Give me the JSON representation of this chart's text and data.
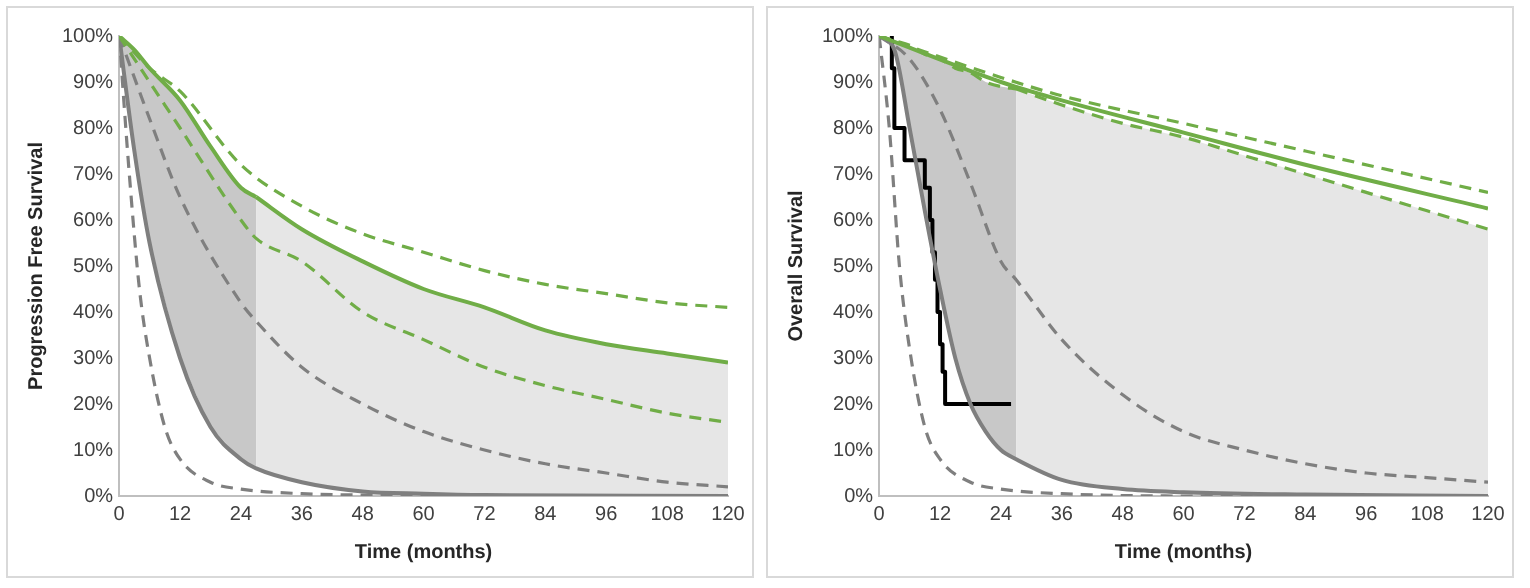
{
  "chart_data": [
    {
      "type": "line",
      "xlabel": "Time (months)",
      "ylabel": "Progression Free Survival",
      "xlim": [
        0,
        120
      ],
      "xticks": [
        0,
        12,
        24,
        36,
        48,
        60,
        72,
        84,
        96,
        108,
        120
      ],
      "ylim": [
        0,
        100
      ],
      "yticks": [
        {
          "value": 0,
          "label": "0%"
        },
        {
          "value": 10,
          "label": "10%"
        },
        {
          "value": 20,
          "label": "20%"
        },
        {
          "value": 30,
          "label": "30%"
        },
        {
          "value": 40,
          "label": "40%"
        },
        {
          "value": 50,
          "label": "50%"
        },
        {
          "value": 60,
          "label": "60%"
        },
        {
          "value": 70,
          "label": "70%"
        },
        {
          "value": 80,
          "label": "80%"
        },
        {
          "value": 90,
          "label": "90%"
        },
        {
          "value": 100,
          "label": "100%"
        }
      ],
      "grid": false,
      "legend": false,
      "marker": "none",
      "series": [
        {
          "color": "#70ad47",
          "line_style": "solid",
          "x": [
            0,
            3,
            6,
            12,
            18,
            24,
            27
          ],
          "values": [
            100,
            97,
            93,
            86,
            76,
            67,
            65
          ],
          "lower": [
            100,
            75,
            55,
            30,
            15,
            8,
            6
          ],
          "upper": [
            100,
            97,
            93,
            86,
            76,
            67,
            65
          ]
        },
        {
          "color": "#70ad47",
          "line_style": "solid",
          "x": [
            27,
            36,
            48,
            60,
            72,
            84,
            96,
            108,
            120
          ],
          "values": [
            65,
            58,
            51,
            45,
            41,
            36,
            33,
            31,
            29
          ],
          "lower": [
            6,
            3,
            1,
            0.5,
            0.2,
            0.1,
            0,
            0,
            0
          ],
          "upper": [
            65,
            58,
            51,
            45,
            41,
            36,
            33,
            31,
            29
          ]
        },
        {
          "color": "#70ad47",
          "line_style": "dashed",
          "x": [
            0,
            6,
            12,
            24,
            36,
            48,
            60,
            72,
            84,
            96,
            108,
            120
          ],
          "values": [
            100,
            93,
            88,
            72,
            63,
            57,
            53,
            49,
            46,
            44,
            42,
            41
          ]
        },
        {
          "color": "#70ad47",
          "line_style": "dashed",
          "x": [
            0,
            6,
            12,
            24,
            27,
            36,
            48,
            60,
            72,
            84,
            96,
            108,
            120
          ],
          "values": [
            100,
            90,
            80,
            60,
            56,
            51,
            40,
            34,
            28,
            24,
            21,
            18,
            16
          ]
        },
        {
          "color": "#7f7f7f",
          "line_style": "dashed",
          "x": [
            0,
            6,
            12,
            24,
            27,
            36,
            48,
            60,
            72,
            84,
            96,
            108,
            120
          ],
          "values": [
            100,
            82,
            65,
            42,
            38,
            28,
            20,
            14,
            10,
            7,
            5,
            3,
            2
          ]
        },
        {
          "color": "#7f7f7f",
          "line_style": "solid",
          "x": [
            0,
            3,
            6,
            12,
            18,
            24,
            27,
            36,
            48,
            60,
            72,
            120
          ],
          "values": [
            100,
            75,
            55,
            30,
            15,
            8,
            6,
            3,
            1,
            0.5,
            0.2,
            0
          ]
        },
        {
          "color": "#7f7f7f",
          "line_style": "dashed",
          "x": [
            0,
            2,
            4,
            6,
            9,
            12,
            18,
            24,
            36,
            48,
            60,
            120
          ],
          "values": [
            100,
            70,
            45,
            30,
            15,
            8,
            3,
            1.5,
            0.5,
            0.2,
            0,
            0
          ]
        }
      ]
    },
    {
      "type": "line",
      "xlabel": "Time (months)",
      "ylabel": "Overall Survival",
      "xlim": [
        0,
        120
      ],
      "xticks": [
        0,
        12,
        24,
        36,
        48,
        60,
        72,
        84,
        96,
        108,
        120
      ],
      "ylim": [
        0,
        100
      ],
      "yticks": [
        {
          "value": 0,
          "label": "0%"
        },
        {
          "value": 10,
          "label": "10%"
        },
        {
          "value": 20,
          "label": "20%"
        },
        {
          "value": 30,
          "label": "30%"
        },
        {
          "value": 40,
          "label": "40%"
        },
        {
          "value": 50,
          "label": "50%"
        },
        {
          "value": 60,
          "label": "60%"
        },
        {
          "value": 70,
          "label": "70%"
        },
        {
          "value": 80,
          "label": "80%"
        },
        {
          "value": 90,
          "label": "90%"
        },
        {
          "value": 100,
          "label": "100%"
        }
      ],
      "grid": false,
      "legend": false,
      "marker": "none",
      "series": [
        {
          "color": "#70ad47",
          "line_style": "solid",
          "x": [
            0,
            24,
            36,
            60,
            84,
            120
          ],
          "values": [
            100,
            90,
            86,
            79,
            72,
            62.5
          ]
        },
        {
          "color": "#70ad47",
          "line_style": "dashed",
          "x": [
            0,
            24,
            36,
            60,
            84,
            120
          ],
          "values": [
            100,
            91,
            87,
            81,
            75,
            66
          ]
        },
        {
          "color": "#70ad47",
          "line_style": "dashed",
          "x": [
            0,
            3,
            6,
            9,
            12,
            15,
            18,
            21,
            24,
            27
          ],
          "values": [
            100,
            99,
            98,
            96,
            95,
            93,
            92,
            90,
            89,
            88.5
          ],
          "lower": [
            100,
            97,
            80,
            62,
            45,
            30,
            20,
            14,
            10,
            8
          ],
          "upper": [
            100,
            99,
            98,
            96,
            95,
            93,
            92,
            90,
            89,
            88.5
          ]
        },
        {
          "color": "#70ad47",
          "line_style": "dashed",
          "x": [
            27,
            36,
            48,
            60,
            72,
            84,
            96,
            108,
            120
          ],
          "values": [
            88.5,
            85,
            81,
            78,
            74,
            70,
            66,
            62,
            58
          ],
          "lower": [
            8,
            3.5,
            1.5,
            0.8,
            0.5,
            0.3,
            0.1,
            0,
            0
          ],
          "upper": [
            88.5,
            85,
            81,
            78,
            74,
            70,
            66,
            62,
            58
          ]
        },
        {
          "color": "#7f7f7f",
          "line_style": "dashed",
          "x": [
            0,
            6,
            12,
            18,
            24,
            27,
            36,
            48,
            60,
            72,
            84,
            96,
            108,
            120
          ],
          "values": [
            100,
            95,
            84,
            68,
            51,
            47,
            34,
            22,
            14,
            10,
            7,
            5,
            4,
            3
          ]
        },
        {
          "color": "#7f7f7f",
          "line_style": "solid",
          "x": [
            0,
            3,
            6,
            9,
            12,
            15,
            18,
            21,
            24,
            27,
            36,
            48,
            60,
            84,
            120
          ],
          "values": [
            100,
            97,
            80,
            62,
            45,
            30,
            20,
            14,
            10,
            8,
            3.5,
            1.5,
            0.8,
            0.3,
            0
          ]
        },
        {
          "color": "#7f7f7f",
          "line_style": "dashed",
          "x": [
            0,
            2,
            4,
            6,
            9,
            12,
            18,
            24,
            36,
            60,
            120
          ],
          "values": [
            100,
            80,
            50,
            32,
            15,
            8,
            3,
            1.5,
            0.5,
            0,
            0
          ]
        },
        {
          "type": "step",
          "color": "#000000",
          "line_style": "solid",
          "x": [
            2.5,
            3,
            5,
            9,
            10,
            10.5,
            11,
            11.5,
            12,
            12.5,
            13,
            14,
            26
          ],
          "values": [
            100,
            93,
            80,
            73,
            67,
            60,
            53,
            47,
            40,
            33,
            27,
            20,
            20
          ]
        }
      ]
    }
  ]
}
